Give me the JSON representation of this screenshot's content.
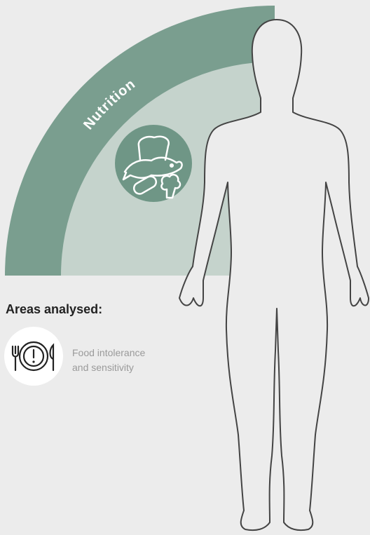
{
  "category_label": "Nutrition",
  "section_heading": "Areas analysed:",
  "areas": [
    {
      "label_lines": [
        "Food intolerance",
        "and sensitivity"
      ]
    }
  ]
}
